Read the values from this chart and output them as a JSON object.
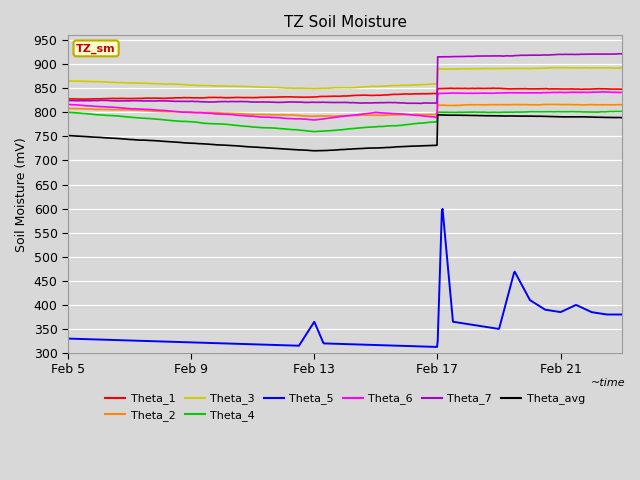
{
  "title": "TZ Soil Moisture",
  "ylabel": "Soil Moisture (mV)",
  "xlabel": "~time",
  "ylim": [
    300,
    960
  ],
  "yticks": [
    300,
    350,
    400,
    450,
    500,
    550,
    600,
    650,
    700,
    750,
    800,
    850,
    900,
    950
  ],
  "xtick_labels": [
    "Feb 5",
    "Feb 9",
    "Feb 13",
    "Feb 17",
    "Feb 21"
  ],
  "xtick_positions": [
    0,
    4,
    8,
    12,
    16
  ],
  "xlim": [
    0,
    18
  ],
  "bg_color": "#d8d8d8",
  "grid_color": "#ffffff",
  "legend_box_facecolor": "#ffffcc",
  "legend_box_edgecolor": "#bbaa00",
  "label_color": "#cc0000",
  "label_text": "TZ_sm",
  "title_fontsize": 11,
  "tick_fontsize": 9,
  "ylabel_fontsize": 9,
  "series_colors": {
    "Theta_1": "#ff0000",
    "Theta_2": "#ff8800",
    "Theta_3": "#cccc00",
    "Theta_4": "#00cc00",
    "Theta_5": "#0000ff",
    "Theta_6": "#ff00ff",
    "Theta_7": "#aa00cc",
    "Theta_avg": "#000000"
  },
  "legend_row1": [
    "Theta_1",
    "Theta_2",
    "Theta_3",
    "Theta_4",
    "Theta_5",
    "Theta_6"
  ],
  "legend_row2": [
    "Theta_7",
    "Theta_avg"
  ]
}
